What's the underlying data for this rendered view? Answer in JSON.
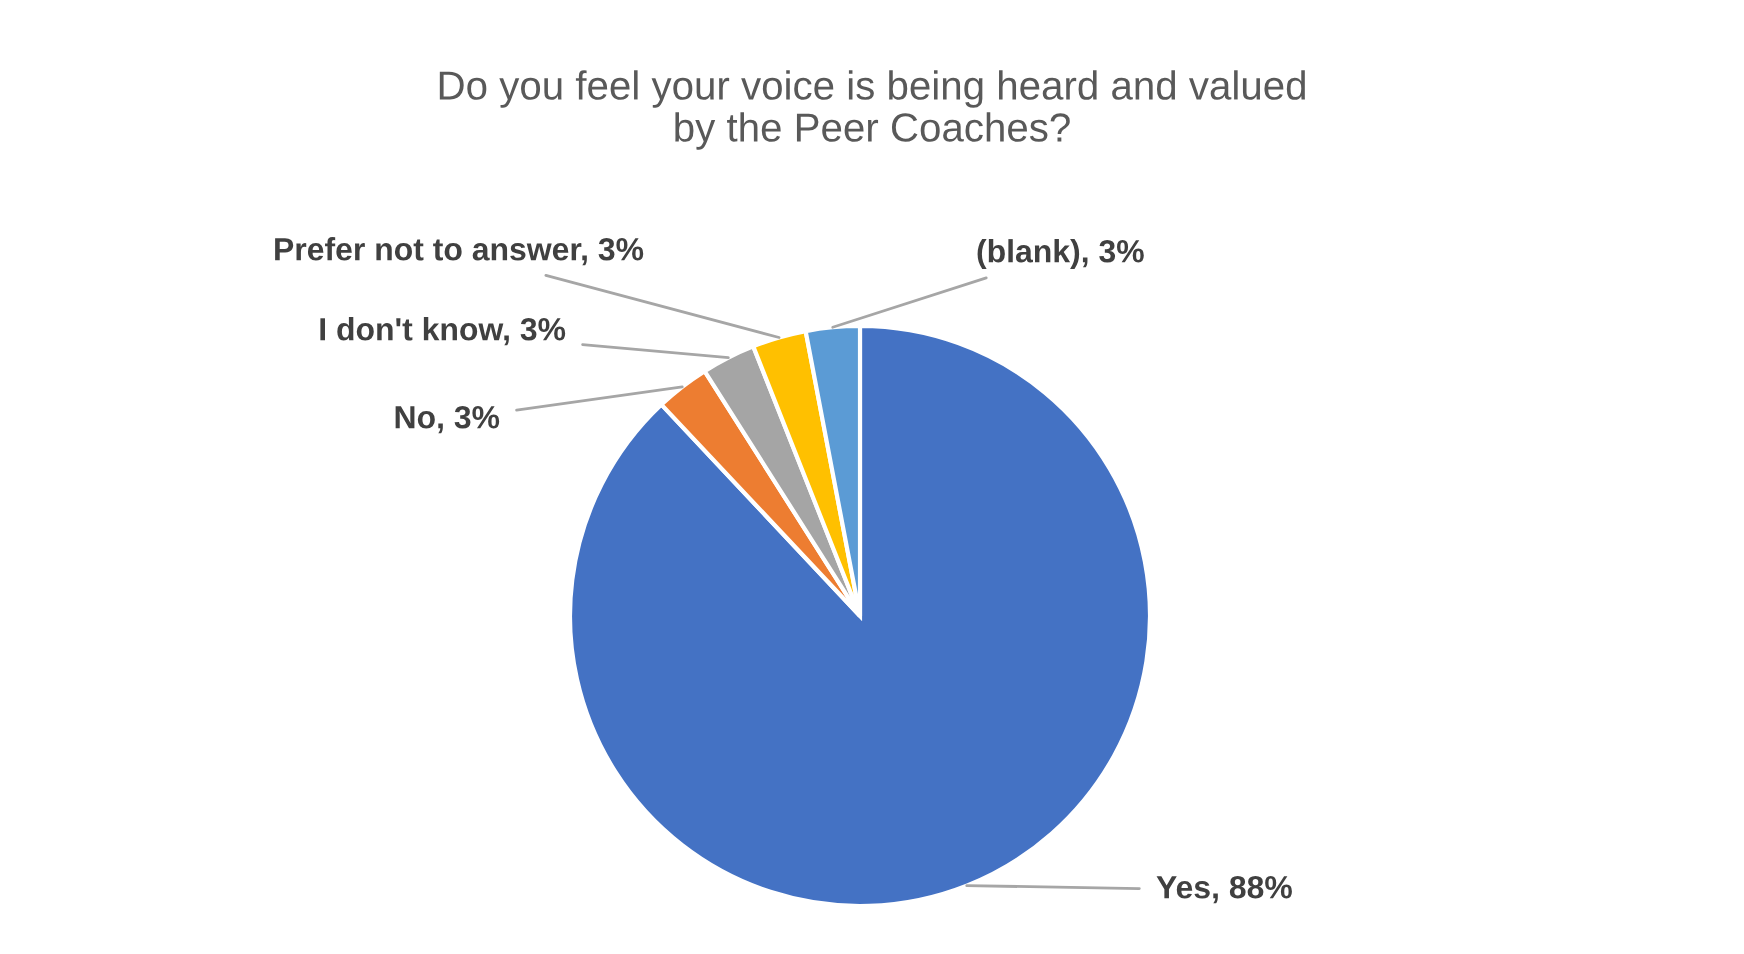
{
  "chart_data": {
    "type": "pie",
    "title": "Do you feel your voice is being heard and valued\nby the Peer Coaches?",
    "categories": [
      "Yes",
      "No",
      "I don't know",
      "Prefer not to answer",
      "(blank)"
    ],
    "values": [
      88,
      3,
      3,
      3,
      3
    ],
    "value_labels": [
      "88%",
      "3%",
      "3%",
      "3%",
      "3%"
    ],
    "colors": [
      "#4472c4",
      "#ed7d31",
      "#a5a5a5",
      "#ffc000",
      "#5b9bd5"
    ],
    "legend": false
  }
}
